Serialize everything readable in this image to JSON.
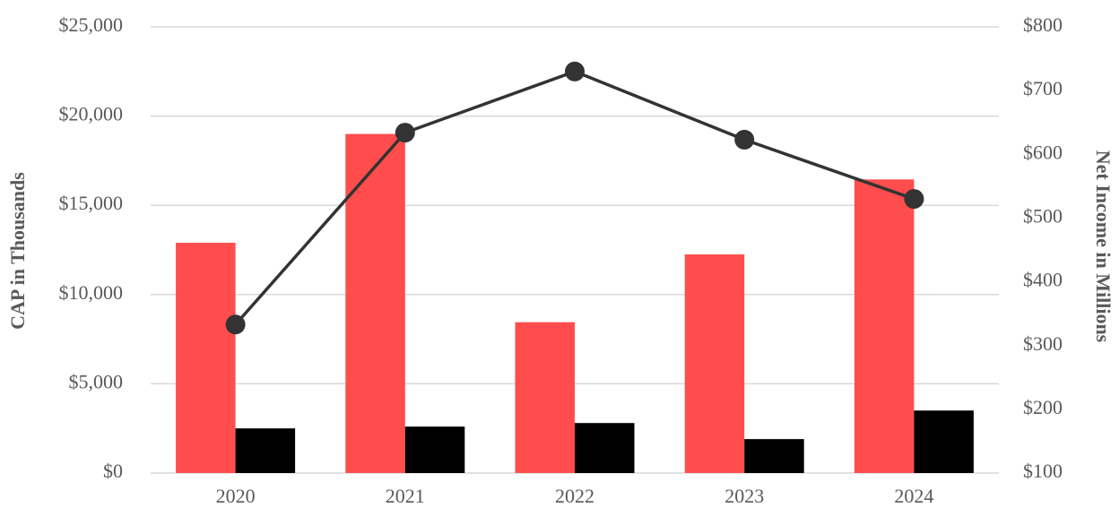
{
  "chart_data": {
    "type": "bar",
    "y_label": "CAP in Thousands",
    "y2_label": "Net Income in Millions",
    "categories": [
      "2020",
      "2021",
      "2022",
      "2023",
      "2024"
    ],
    "series": [
      {
        "color": "#ff4d4d",
        "values": [
          12900,
          19000,
          8450,
          12250,
          16450
        ]
      },
      {
        "color": "#000000",
        "values": [
          2500,
          2600,
          2800,
          1900,
          3500
        ]
      },
      {
        "type": "line",
        "axis": "y2",
        "color": "#333333",
        "values": [
          333,
          634,
          730,
          623,
          530
        ]
      }
    ],
    "ylim": [
      0,
      25000
    ],
    "yticks": [
      {
        "value": 0,
        "label": "$0"
      },
      {
        "value": 5000,
        "label": "$5,000"
      },
      {
        "value": 10000,
        "label": "$10,000"
      },
      {
        "value": 15000,
        "label": "$15,000"
      },
      {
        "value": 20000,
        "label": "$20,000"
      },
      {
        "value": 25000,
        "label": "$25,000"
      }
    ],
    "y2lim": [
      100,
      800
    ],
    "y2ticks": [
      {
        "value": 100,
        "label": "$100"
      },
      {
        "value": 200,
        "label": "$200"
      },
      {
        "value": 300,
        "label": "$300"
      },
      {
        "value": 400,
        "label": "$400"
      },
      {
        "value": 500,
        "label": "$500"
      },
      {
        "value": 600,
        "label": "$600"
      },
      {
        "value": 700,
        "label": "$700"
      },
      {
        "value": 800,
        "label": "$800"
      }
    ],
    "grid": true
  }
}
